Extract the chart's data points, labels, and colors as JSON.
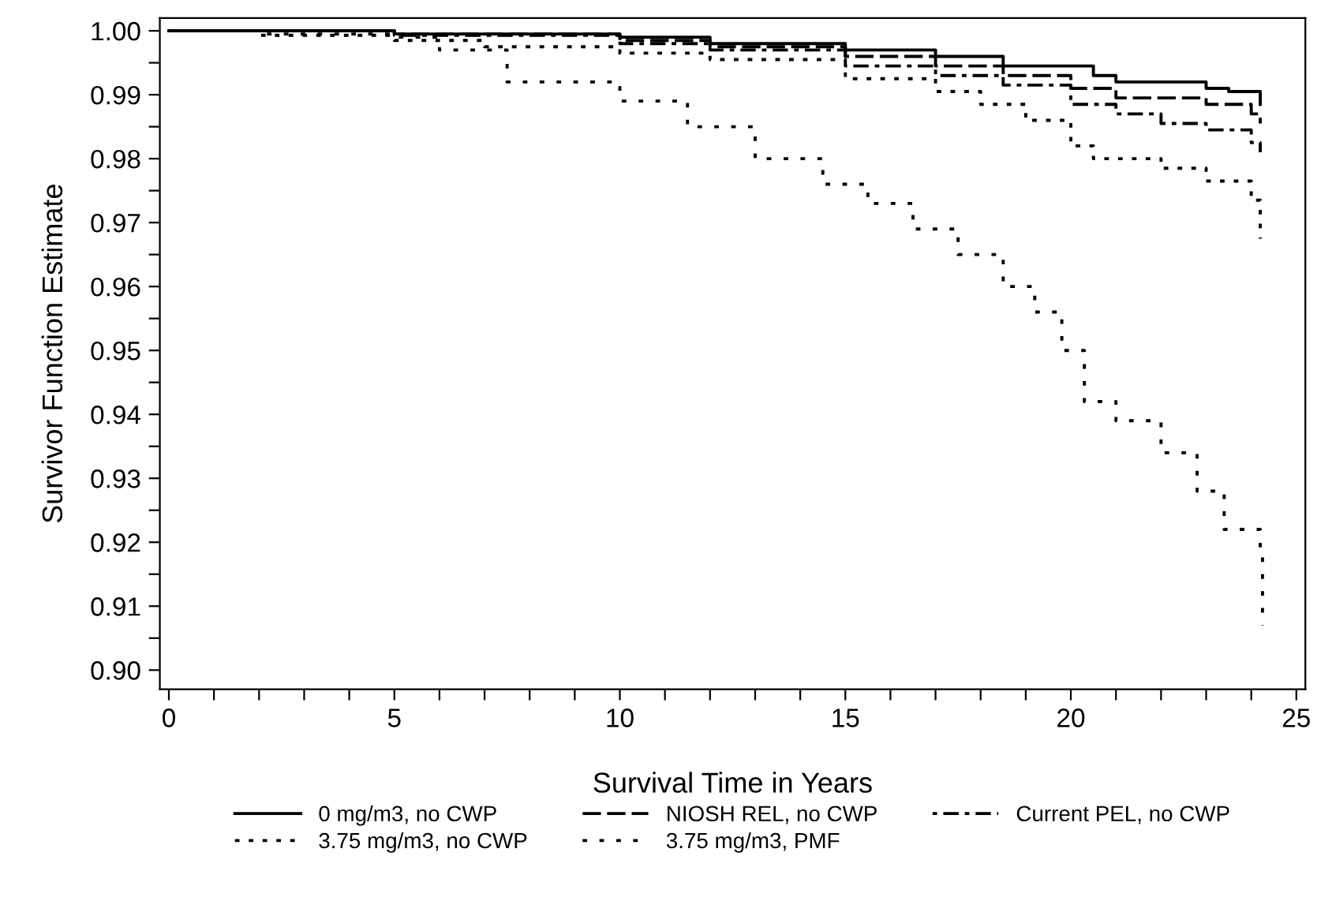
{
  "chart_data": {
    "type": "step",
    "xlabel": "Survival Time in Years",
    "ylabel": "Survivor Function Estimate",
    "xlim": [
      -0.2,
      25.2
    ],
    "ylim": [
      0.897,
      1.002
    ],
    "xticks": [
      0,
      {
        "value": 1,
        "label": null
      },
      {
        "value": 2,
        "label": null
      },
      {
        "value": 3,
        "label": null
      },
      {
        "value": 4,
        "label": null
      },
      5,
      {
        "value": 6,
        "label": null
      },
      {
        "value": 7,
        "label": null
      },
      {
        "value": 8,
        "label": null
      },
      {
        "value": 9,
        "label": null
      },
      10,
      {
        "value": 11,
        "label": null
      },
      {
        "value": 12,
        "label": null
      },
      {
        "value": 13,
        "label": null
      },
      {
        "value": 14,
        "label": null
      },
      15,
      {
        "value": 16,
        "label": null
      },
      {
        "value": 17,
        "label": null
      },
      {
        "value": 18,
        "label": null
      },
      {
        "value": 19,
        "label": null
      },
      20,
      {
        "value": 21,
        "label": null
      },
      {
        "value": 22,
        "label": null
      },
      {
        "value": 23,
        "label": null
      },
      {
        "value": 24,
        "label": null
      },
      25
    ],
    "yticks": [
      {
        "value": 0.9,
        "label": "0.90"
      },
      {
        "value": 0.905,
        "label": null
      },
      {
        "value": 0.91,
        "label": "0.91"
      },
      {
        "value": 0.915,
        "label": null
      },
      {
        "value": 0.92,
        "label": "0.92"
      },
      {
        "value": 0.925,
        "label": null
      },
      {
        "value": 0.93,
        "label": "0.93"
      },
      {
        "value": 0.935,
        "label": null
      },
      {
        "value": 0.94,
        "label": "0.94"
      },
      {
        "value": 0.945,
        "label": null
      },
      {
        "value": 0.95,
        "label": "0.95"
      },
      {
        "value": 0.955,
        "label": null
      },
      {
        "value": 0.96,
        "label": "0.96"
      },
      {
        "value": 0.965,
        "label": null
      },
      {
        "value": 0.97,
        "label": "0.97"
      },
      {
        "value": 0.975,
        "label": null
      },
      {
        "value": 0.98,
        "label": "0.98"
      },
      {
        "value": 0.985,
        "label": null
      },
      {
        "value": 0.99,
        "label": "0.99"
      },
      {
        "value": 0.995,
        "label": null
      },
      {
        "value": 1.0,
        "label": "1.00"
      }
    ],
    "grid": false,
    "legend": "bottom",
    "series": [
      {
        "name": "0 mg/m3, no CWP",
        "color": "#000000",
        "line_style": "solid",
        "x": [
          0,
          5,
          10,
          12,
          15,
          17,
          18.5,
          20.5,
          21,
          23,
          23.5,
          24.2
        ],
        "values": [
          1.0,
          0.9995,
          0.999,
          0.998,
          0.997,
          0.996,
          0.9945,
          0.993,
          0.992,
          0.991,
          0.9905,
          0.9885
        ]
      },
      {
        "name": "NIOSH REL, no CWP",
        "color": "#000000",
        "line_style": "dashed",
        "x": [
          0,
          5,
          10,
          12,
          15,
          17,
          18.5,
          20,
          21,
          23,
          24,
          24.2
        ],
        "values": [
          1.0,
          0.9995,
          0.9985,
          0.9975,
          0.996,
          0.9945,
          0.993,
          0.991,
          0.9895,
          0.9885,
          0.987,
          0.9855
        ]
      },
      {
        "name": "Current PEL, no CWP",
        "color": "#000000",
        "line_style": "dashdot",
        "x": [
          0,
          5,
          10,
          12,
          15,
          17,
          18.5,
          20,
          21,
          22,
          23,
          24,
          24.2
        ],
        "values": [
          1.0,
          0.9993,
          0.998,
          0.997,
          0.9945,
          0.993,
          0.9915,
          0.9885,
          0.987,
          0.9855,
          0.9845,
          0.9825,
          0.981
        ]
      },
      {
        "name": "3.75 mg/m3, no CWP",
        "color": "#000000",
        "line_style": "dotted",
        "x": [
          0,
          2,
          5,
          7,
          10,
          12,
          15,
          17,
          18,
          19,
          20,
          20.5,
          22,
          23,
          24,
          24.2
        ],
        "values": [
          1.0,
          0.9993,
          0.9985,
          0.9975,
          0.9965,
          0.9955,
          0.9925,
          0.9905,
          0.9885,
          0.986,
          0.982,
          0.98,
          0.9785,
          0.9765,
          0.9735,
          0.9675
        ]
      },
      {
        "name": "3.75 mg/m3, PMF",
        "color": "#000000",
        "line_style": "loosedot",
        "x": [
          0,
          2,
          5,
          6,
          7.5,
          10,
          11.5,
          13,
          14.5,
          15.5,
          16.5,
          17.5,
          18.5,
          19.2,
          19.8,
          20.3,
          21,
          22,
          22.8,
          23.4,
          24.2,
          24.25
        ],
        "values": [
          1.0,
          0.9995,
          0.999,
          0.997,
          0.992,
          0.989,
          0.985,
          0.98,
          0.976,
          0.973,
          0.969,
          0.965,
          0.96,
          0.956,
          0.95,
          0.942,
          0.939,
          0.934,
          0.928,
          0.922,
          0.919,
          0.907
        ]
      }
    ]
  }
}
